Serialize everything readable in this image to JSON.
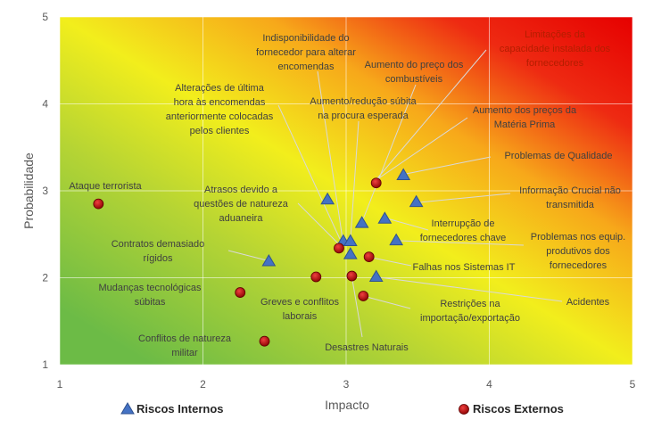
{
  "chart_data": {
    "type": "scatter",
    "x_label": "Impacto",
    "y_label": "Probabilidade",
    "xlim": [
      1,
      5
    ],
    "ylim": [
      1,
      5
    ],
    "xticks": [
      1,
      2,
      3,
      4,
      5
    ],
    "yticks": [
      1,
      2,
      3,
      4,
      5
    ],
    "grid": true,
    "legend": "bottom",
    "series": [
      {
        "name": "Riscos Internos",
        "color": "#4472c4",
        "marker": "triangle",
        "x": [
          3.4,
          3.49,
          3.27,
          3.11,
          3.35,
          2.98,
          3.03,
          3.03,
          2.87,
          2.46,
          3.21
        ],
        "y": [
          3.18,
          2.87,
          2.68,
          2.63,
          2.43,
          2.42,
          2.42,
          2.27,
          2.9,
          2.19,
          2.01
        ]
      },
      {
        "name": "Riscos Externos",
        "color": "#c00000",
        "marker": "circle",
        "x": [
          3.21,
          1.27,
          2.95,
          3.16,
          2.79,
          3.04,
          3.12,
          2.26,
          2.43
        ],
        "y": [
          3.09,
          2.85,
          2.34,
          2.24,
          2.01,
          2.02,
          1.79,
          1.83,
          1.27
        ]
      }
    ],
    "annotations": [
      "Indisponibilidade do\nfornecedor para alterar\nencomendas",
      "Limitações da\ncapacidade instalada dos\nfornecedores",
      "Aumento  do preço dos\ncombustíveis",
      "Alterações de última\nhora às encomendas\nanteriormente colocadas\npelos clientes",
      "Aumento/redução  súbita\nna procura esperada",
      "Aumento  dos preços da\nMatéria Prima",
      "Problemas de Qualidade",
      "Ataque terrorista",
      "Atrasos devido a\nquestões de natureza\naduaneira",
      "Informação Crucial não\ntransmitida",
      "Interrupção de\nfornecedores chave",
      "Problemas nos equip.\nprodutivos dos\nfornecedores",
      "Contratos demasiado\nrígidos",
      "Falhas nos Sistemas IT",
      "Acidentes",
      "Mudanças tecnológicas\nsúbitas",
      "Greves e conflitos\nlaborais",
      "Restrições na\nimportação/exportação",
      "Conflitos de natureza\nmilitar",
      "Desastres Naturais"
    ]
  }
}
